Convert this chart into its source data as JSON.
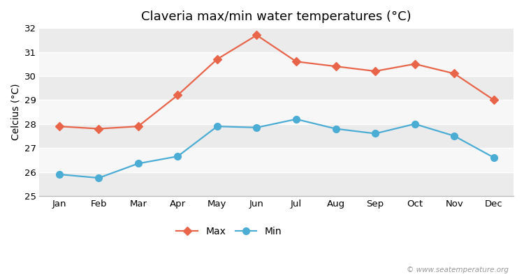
{
  "title": "Claveria max/min water temperatures (°C)",
  "ylabel": "Celcius (°C)",
  "months": [
    "Jan",
    "Feb",
    "Mar",
    "Apr",
    "May",
    "Jun",
    "Jul",
    "Aug",
    "Sep",
    "Oct",
    "Nov",
    "Dec"
  ],
  "max_temps": [
    27.9,
    27.8,
    27.9,
    29.2,
    30.7,
    31.7,
    30.6,
    30.4,
    30.2,
    30.5,
    30.1,
    29.0
  ],
  "min_temps": [
    25.9,
    25.75,
    26.35,
    26.65,
    27.9,
    27.85,
    28.2,
    27.8,
    27.6,
    28.0,
    27.5,
    26.6
  ],
  "max_color": "#e8654a",
  "min_color": "#4bacd4",
  "bg_color": "#ffffff",
  "band_light": "#ebebeb",
  "band_dark": "#f7f7f7",
  "ylim": [
    25,
    32
  ],
  "yticks": [
    25,
    26,
    27,
    28,
    29,
    30,
    31,
    32
  ],
  "legend_labels": [
    "Max",
    "Min"
  ],
  "watermark": "© www.seatemperature.org",
  "title_fontsize": 13,
  "label_fontsize": 10,
  "tick_fontsize": 9.5,
  "marker_max": "D",
  "marker_min": "o",
  "markersize_max": 6,
  "markersize_min": 7,
  "linewidth": 1.6
}
